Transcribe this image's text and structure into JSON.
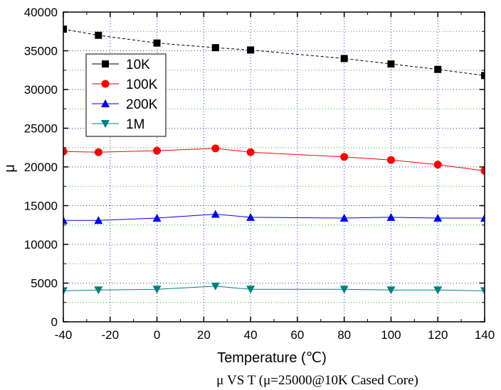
{
  "chart_data": {
    "type": "line",
    "caption": "μ VS T (μ=25000@10K Cased Core)",
    "xlabel": "Temperature (℃)",
    "ylabel": "μ",
    "xlim": [
      -40,
      140
    ],
    "ylim": [
      0,
      40000
    ],
    "xticks": [
      -40,
      -20,
      0,
      20,
      40,
      60,
      80,
      100,
      120,
      140
    ],
    "yticks": [
      0,
      5000,
      10000,
      15000,
      20000,
      25000,
      30000,
      35000,
      40000
    ],
    "grid": true,
    "legend_position": "top-left",
    "series": [
      {
        "name": "10K",
        "color": "#000000",
        "marker": "square",
        "line": "dashed",
        "x": [
          -40,
          -25,
          0,
          25,
          40,
          80,
          100,
          120,
          140
        ],
        "y": [
          37800,
          37000,
          36000,
          35400,
          35100,
          34000,
          33300,
          32600,
          31800
        ]
      },
      {
        "name": "100K",
        "color": "#ff0000",
        "marker": "circle",
        "line": "solid",
        "x": [
          -40,
          -25,
          0,
          25,
          40,
          80,
          100,
          120,
          140
        ],
        "y": [
          22000,
          21900,
          22100,
          22400,
          21900,
          21300,
          20900,
          20300,
          19500
        ]
      },
      {
        "name": "200K",
        "color": "#0000ff",
        "marker": "triangle-up",
        "line": "solid",
        "x": [
          -40,
          -25,
          0,
          25,
          40,
          80,
          100,
          120,
          140
        ],
        "y": [
          13100,
          13100,
          13400,
          13900,
          13500,
          13400,
          13500,
          13400,
          13400
        ]
      },
      {
        "name": "1M",
        "color": "#008080",
        "marker": "triangle-down",
        "line": "solid",
        "x": [
          -40,
          -25,
          0,
          25,
          40,
          80,
          100,
          120,
          140
        ],
        "y": [
          4000,
          4100,
          4200,
          4600,
          4200,
          4200,
          4100,
          4100,
          4000
        ]
      }
    ]
  }
}
